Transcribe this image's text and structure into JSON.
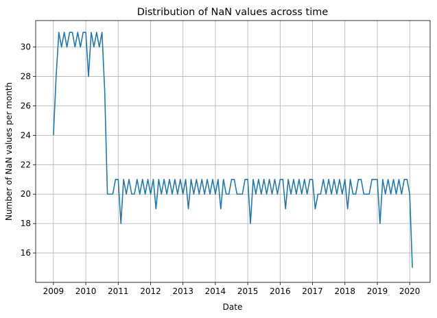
{
  "chart_data": {
    "type": "line",
    "title": "Distribution of NaN values across time",
    "xlabel": "Date",
    "ylabel": "Number of NaN values per month",
    "x_start": "2009-01",
    "x_end": "2020-02",
    "x_ticks": [
      "2009",
      "2010",
      "2011",
      "2012",
      "2013",
      "2014",
      "2015",
      "2016",
      "2017",
      "2018",
      "2019",
      "2020"
    ],
    "y_ticks": [
      16,
      18,
      20,
      22,
      24,
      26,
      28,
      30
    ],
    "ylim": [
      14.0,
      31.8
    ],
    "grid": true,
    "series": [
      {
        "color": "#1f77b4",
        "x": [
          "2009-01",
          "2009-02",
          "2009-03",
          "2009-04",
          "2009-05",
          "2009-06",
          "2009-07",
          "2009-08",
          "2009-09",
          "2009-10",
          "2009-11",
          "2009-12",
          "2010-01",
          "2010-02",
          "2010-03",
          "2010-04",
          "2010-05",
          "2010-06",
          "2010-07",
          "2010-08",
          "2010-09",
          "2010-10",
          "2010-11",
          "2010-12",
          "2011-01",
          "2011-02",
          "2011-03",
          "2011-04",
          "2011-05",
          "2011-06",
          "2011-07",
          "2011-08",
          "2011-09",
          "2011-10",
          "2011-11",
          "2011-12",
          "2012-01",
          "2012-02",
          "2012-03",
          "2012-04",
          "2012-05",
          "2012-06",
          "2012-07",
          "2012-08",
          "2012-09",
          "2012-10",
          "2012-11",
          "2012-12",
          "2013-01",
          "2013-02",
          "2013-03",
          "2013-04",
          "2013-05",
          "2013-06",
          "2013-07",
          "2013-08",
          "2013-09",
          "2013-10",
          "2013-11",
          "2013-12",
          "2014-01",
          "2014-02",
          "2014-03",
          "2014-04",
          "2014-05",
          "2014-06",
          "2014-07",
          "2014-08",
          "2014-09",
          "2014-10",
          "2014-11",
          "2014-12",
          "2015-01",
          "2015-02",
          "2015-03",
          "2015-04",
          "2015-05",
          "2015-06",
          "2015-07",
          "2015-08",
          "2015-09",
          "2015-10",
          "2015-11",
          "2015-12",
          "2016-01",
          "2016-02",
          "2016-03",
          "2016-04",
          "2016-05",
          "2016-06",
          "2016-07",
          "2016-08",
          "2016-09",
          "2016-10",
          "2016-11",
          "2016-12",
          "2017-01",
          "2017-02",
          "2017-03",
          "2017-04",
          "2017-05",
          "2017-06",
          "2017-07",
          "2017-08",
          "2017-09",
          "2017-10",
          "2017-11",
          "2017-12",
          "2018-01",
          "2018-02",
          "2018-03",
          "2018-04",
          "2018-05",
          "2018-06",
          "2018-07",
          "2018-08",
          "2018-09",
          "2018-10",
          "2018-11",
          "2018-12",
          "2019-01",
          "2019-02",
          "2019-03",
          "2019-04",
          "2019-05",
          "2019-06",
          "2019-07",
          "2019-08",
          "2019-09",
          "2019-10",
          "2019-11",
          "2019-12",
          "2020-01",
          "2020-02"
        ],
        "y": [
          24,
          28,
          31,
          30,
          31,
          30,
          31,
          31,
          30,
          31,
          30,
          31,
          31,
          28,
          31,
          30,
          31,
          30,
          31,
          27,
          20,
          20,
          20,
          21,
          21,
          18,
          21,
          20,
          21,
          20,
          20,
          21,
          20,
          21,
          20,
          21,
          20,
          21,
          19,
          21,
          20,
          21,
          20,
          21,
          20,
          21,
          20,
          21,
          20,
          21,
          19,
          21,
          20,
          21,
          20,
          21,
          20,
          21,
          20,
          21,
          20,
          21,
          19,
          21,
          20,
          20,
          21,
          21,
          20,
          20,
          20,
          21,
          21,
          18,
          21,
          20,
          21,
          20,
          21,
          20,
          21,
          20,
          21,
          20,
          21,
          21,
          19,
          21,
          20,
          21,
          20,
          21,
          20,
          21,
          20,
          21,
          21,
          19,
          20,
          20,
          21,
          20,
          21,
          20,
          21,
          20,
          21,
          20,
          21,
          19,
          21,
          20,
          20,
          21,
          21,
          20,
          20,
          20,
          21,
          21,
          21,
          18,
          21,
          20,
          21,
          20,
          21,
          20,
          21,
          20,
          21,
          21,
          20,
          15
        ]
      }
    ]
  }
}
